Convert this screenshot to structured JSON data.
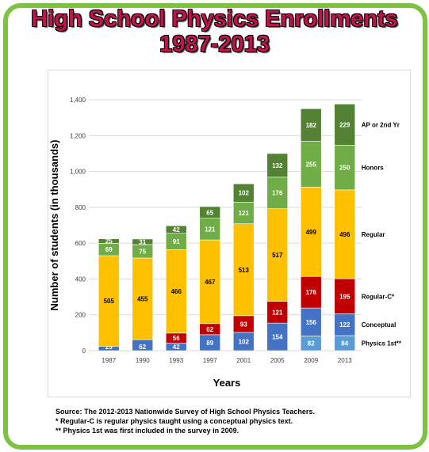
{
  "title_line1": "High School Physics Enrollments",
  "title_line2": "1987-2013",
  "colors": {
    "frame": "#7dc242",
    "title": "#c0144c",
    "physics_1st": "#5b9bd5",
    "conceptual": "#4472c4",
    "regular_c": "#c00000",
    "regular": "#ffc000",
    "honors": "#70ad47",
    "ap": "#548235"
  },
  "chart_data": {
    "type": "bar",
    "stacked": true,
    "title": "High School Physics Enrollments 1987-2013",
    "xlabel": "Years",
    "ylabel": "Number of students (in thousands)",
    "ylim": [
      0,
      1400
    ],
    "yticks": [
      "0",
      "200",
      "400",
      "600",
      "800",
      "1,000",
      "1,200",
      "1,400"
    ],
    "ytick_values": [
      0,
      200,
      400,
      600,
      800,
      1000,
      1200,
      1400
    ],
    "grid": true,
    "legend_placement": "right, inline labels beside the last bar",
    "categories": [
      "1987",
      "1990",
      "1993",
      "1997",
      "2001",
      "2005",
      "2009",
      "2013"
    ],
    "series": [
      {
        "name": "Physics 1st**",
        "key": "physics_1st",
        "values": [
          null,
          null,
          null,
          null,
          null,
          null,
          82,
          84
        ]
      },
      {
        "name": "Conceptual",
        "key": "conceptual",
        "values": [
          25,
          62,
          42,
          89,
          102,
          154,
          156,
          122
        ]
      },
      {
        "name": "Regular-C*",
        "key": "regular_c",
        "values": [
          null,
          null,
          56,
          62,
          93,
          121,
          176,
          195
        ]
      },
      {
        "name": "Regular",
        "key": "regular",
        "values": [
          505,
          455,
          466,
          467,
          513,
          517,
          499,
          496
        ]
      },
      {
        "name": "Honors",
        "key": "honors",
        "values": [
          69,
          75,
          91,
          121,
          121,
          176,
          255,
          250
        ]
      },
      {
        "name": "AP or 2nd Yr",
        "key": "ap",
        "values": [
          25,
          31,
          42,
          65,
          102,
          132,
          182,
          229
        ]
      }
    ]
  },
  "notes": {
    "source": "Source: The 2012-2013 Nationwide Survey of High School Physics Teachers.",
    "note1": "* Regular-C is regular physics taught using a conceptual physics text.",
    "note2": "** Physics 1st was first included in the survey in 2009."
  }
}
